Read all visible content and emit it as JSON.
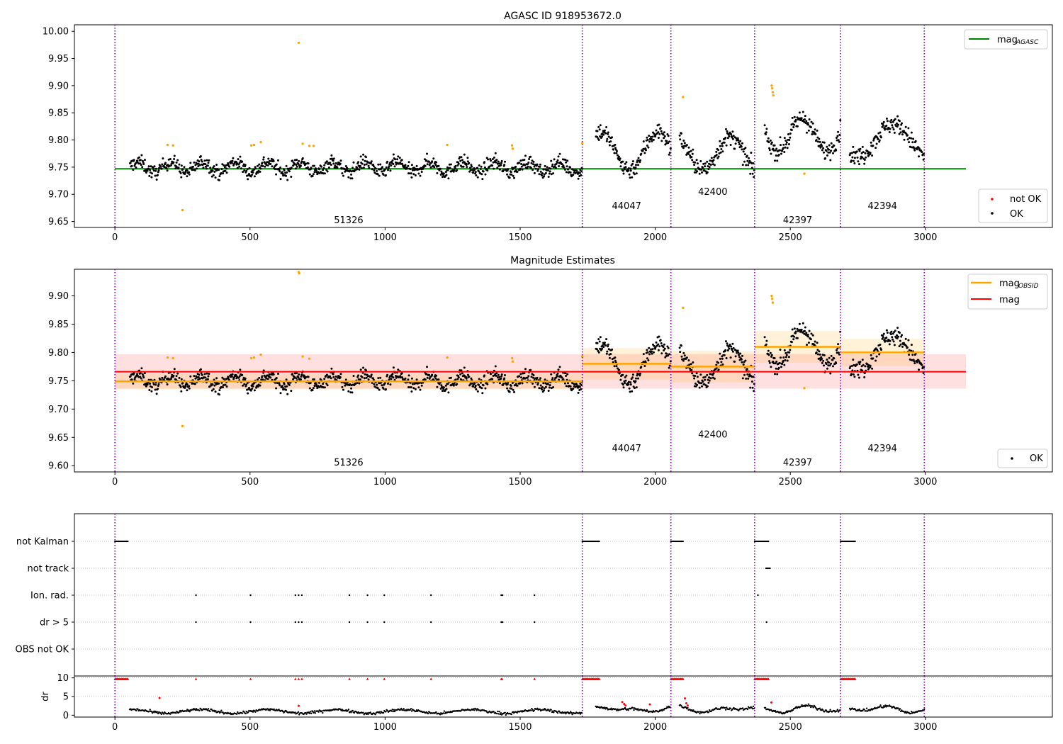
{
  "chart_data": [
    {
      "type": "scatter",
      "title": "AGASC ID 918953672.0",
      "xlim": [
        -150,
        3470
      ],
      "ylim": [
        9.639,
        10.012
      ],
      "xticks": [
        0,
        500,
        1000,
        1500,
        2000,
        2500,
        3000
      ],
      "xtick_labels": [
        "0",
        "500",
        "1000",
        "1500",
        "2000",
        "2500",
        "3000"
      ],
      "yticks": [
        9.65,
        9.7,
        9.75,
        9.8,
        9.85,
        9.9,
        9.95,
        10.0
      ],
      "ytick_labels": [
        "9.65",
        "9.70",
        "9.75",
        "9.80",
        "9.85",
        "9.90",
        "9.95",
        "10.00"
      ],
      "obs_boundaries": [
        0,
        1730,
        2058,
        2368,
        2686,
        2996
      ],
      "obsids": [
        {
          "label": "51326",
          "x": 865,
          "y": 9.652
        },
        {
          "label": "44047",
          "x": 1894,
          "y": 9.678
        },
        {
          "label": "42400",
          "x": 2213,
          "y": 9.704
        },
        {
          "label": "42397",
          "x": 2527,
          "y": 9.652
        },
        {
          "label": "42394",
          "x": 2841,
          "y": 9.678
        }
      ],
      "lines": [
        {
          "name": "mag_AGASC",
          "y": 9.747,
          "x": [
            0,
            3150
          ],
          "color": "#008000"
        }
      ],
      "not_ok_points": [
        {
          "x": 680,
          "y": 9.979
        },
        {
          "x": 250,
          "y": 9.671
        },
        {
          "x": 2103,
          "y": 9.879
        },
        {
          "x": 2431,
          "y": 9.9
        },
        {
          "x": 2433,
          "y": 9.895
        },
        {
          "x": 2435,
          "y": 9.888
        },
        {
          "x": 2437,
          "y": 9.882
        },
        {
          "x": 2552,
          "y": 9.738
        },
        {
          "x": 195,
          "y": 9.791
        },
        {
          "x": 215,
          "y": 9.79
        },
        {
          "x": 505,
          "y": 9.79
        },
        {
          "x": 515,
          "y": 9.791
        },
        {
          "x": 540,
          "y": 9.796
        },
        {
          "x": 695,
          "y": 9.793
        },
        {
          "x": 720,
          "y": 9.789
        },
        {
          "x": 735,
          "y": 9.789
        },
        {
          "x": 1230,
          "y": 9.791
        },
        {
          "x": 1470,
          "y": 9.79
        },
        {
          "x": 1472,
          "y": 9.784
        },
        {
          "x": 1730,
          "y": 9.794
        }
      ],
      "legends": [
        {
          "position": "upper right",
          "entries": [
            {
              "label": "mag",
              "sub": "AGASC",
              "color": "#008000",
              "kind": "line"
            }
          ]
        },
        {
          "position": "lower right",
          "entries": [
            {
              "label": "not OK",
              "color": "#ff0000",
              "kind": "dot"
            },
            {
              "label": "OK",
              "color": "#000000",
              "kind": "dot"
            }
          ]
        }
      ]
    },
    {
      "type": "scatter",
      "title": "Magnitude Estimates",
      "xlim": [
        -150,
        3470
      ],
      "ylim": [
        9.589,
        9.947
      ],
      "xticks": [
        0,
        500,
        1000,
        1500,
        2000,
        2500,
        3000
      ],
      "xtick_labels": [
        "0",
        "500",
        "1000",
        "1500",
        "2000",
        "2500",
        "3000"
      ],
      "yticks": [
        9.6,
        9.65,
        9.7,
        9.75,
        9.8,
        9.85,
        9.9
      ],
      "ytick_labels": [
        "9.60",
        "9.65",
        "9.70",
        "9.75",
        "9.80",
        "9.85",
        "9.90"
      ],
      "obs_boundaries": [
        0,
        1730,
        2058,
        2368,
        2686,
        2996
      ],
      "obsids": [
        {
          "label": "51326",
          "x": 865,
          "y": 9.605
        },
        {
          "label": "44047",
          "x": 1894,
          "y": 9.63
        },
        {
          "label": "42400",
          "x": 2213,
          "y": 9.655
        },
        {
          "label": "42397",
          "x": 2527,
          "y": 9.605
        },
        {
          "label": "42394",
          "x": 2841,
          "y": 9.63
        }
      ],
      "mag": {
        "y": 9.766,
        "band": [
          9.736,
          9.797
        ],
        "x": [
          0,
          3150
        ],
        "color": "#ff0000"
      },
      "mag_obsid": [
        {
          "x": [
            0,
            1730
          ],
          "y": 9.749,
          "band": [
            9.735,
            9.763
          ]
        },
        {
          "x": [
            1730,
            2058
          ],
          "y": 9.78,
          "band": [
            9.752,
            9.808
          ]
        },
        {
          "x": [
            2058,
            2368
          ],
          "y": 9.775,
          "band": [
            9.747,
            9.803
          ]
        },
        {
          "x": [
            2368,
            2686
          ],
          "y": 9.81,
          "band": [
            9.782,
            9.838
          ]
        },
        {
          "x": [
            2686,
            2996
          ],
          "y": 9.8,
          "band": [
            9.776,
            9.824
          ]
        }
      ],
      "not_ok_points": [
        {
          "x": 680,
          "y": 9.942
        },
        {
          "x": 682,
          "y": 9.94
        },
        {
          "x": 250,
          "y": 9.67
        },
        {
          "x": 2103,
          "y": 9.879
        },
        {
          "x": 2431,
          "y": 9.9
        },
        {
          "x": 2433,
          "y": 9.895
        },
        {
          "x": 2435,
          "y": 9.888
        },
        {
          "x": 2552,
          "y": 9.737
        },
        {
          "x": 195,
          "y": 9.791
        },
        {
          "x": 215,
          "y": 9.79
        },
        {
          "x": 505,
          "y": 9.79
        },
        {
          "x": 515,
          "y": 9.791
        },
        {
          "x": 540,
          "y": 9.796
        },
        {
          "x": 695,
          "y": 9.793
        },
        {
          "x": 720,
          "y": 9.789
        },
        {
          "x": 1230,
          "y": 9.791
        },
        {
          "x": 1470,
          "y": 9.79
        },
        {
          "x": 1472,
          "y": 9.784
        },
        {
          "x": 1730,
          "y": 9.793
        }
      ],
      "legends": [
        {
          "position": "upper right",
          "entries": [
            {
              "label": "mag",
              "sub": "OBSID",
              "color": "#ffa500",
              "kind": "line"
            },
            {
              "label": "mag",
              "sub": "",
              "color": "#ff0000",
              "kind": "line"
            }
          ]
        },
        {
          "position": "lower right",
          "entries": [
            {
              "label": "OK",
              "color": "#000000",
              "kind": "dot"
            }
          ]
        }
      ]
    },
    {
      "type": "scatter",
      "title": "",
      "xlim": [
        -150,
        3470
      ],
      "rows": [
        "not Kalman",
        "not track",
        "Ion. rad.",
        "dr > 5",
        "OBS not OK"
      ],
      "obs_boundaries": [
        0,
        1730,
        2058,
        2368,
        2686,
        2996
      ],
      "row_events": {
        "not Kalman": [
          [
            0,
            50
          ],
          [
            1730,
            1795
          ],
          [
            2058,
            2105
          ],
          [
            2368,
            2420
          ],
          [
            2686,
            2740
          ]
        ],
        "not track": [
          [
            2410,
            2425
          ]
        ],
        "Ion. rad.": [
          300,
          502,
          668,
          680,
          692,
          868,
          935,
          997,
          1170,
          1430,
          1435,
          1553,
          2380
        ],
        "dr > 5": [
          300,
          502,
          668,
          680,
          692,
          868,
          935,
          997,
          1170,
          1430,
          1435,
          1553,
          2412
        ],
        "OBS not OK": []
      }
    },
    {
      "type": "scatter",
      "ylabel": "dr",
      "xlim": [
        -150,
        3470
      ],
      "ylim": [
        -0.5,
        10.5
      ],
      "yticks": [
        0,
        5,
        10
      ],
      "ytick_labels": [
        "0",
        "5",
        "10"
      ],
      "xticks": [
        0,
        500,
        1000,
        1500,
        2000,
        2500,
        3000
      ],
      "xtick_labels": [
        "0",
        "500",
        "1000",
        "1500",
        "2000",
        "2500",
        "3000"
      ],
      "obs_boundaries": [
        0,
        1730,
        2058,
        2368,
        2686,
        2996
      ],
      "red_at_10": [
        [
          0,
          50
        ],
        [
          300,
          300
        ],
        [
          502,
          502
        ],
        [
          668,
          668
        ],
        [
          680,
          680
        ],
        [
          692,
          692
        ],
        [
          868,
          868
        ],
        [
          935,
          935
        ],
        [
          997,
          997
        ],
        [
          1170,
          1170
        ],
        [
          1430,
          1435
        ],
        [
          1553,
          1553
        ],
        [
          1730,
          1795
        ],
        [
          2058,
          2105
        ],
        [
          2368,
          2420
        ],
        [
          2686,
          2740
        ]
      ],
      "scattered_red": [
        {
          "x": 165,
          "y": 4.6
        },
        {
          "x": 680,
          "y": 2.5
        },
        {
          "x": 1878,
          "y": 3.5
        },
        {
          "x": 1885,
          "y": 3.0
        },
        {
          "x": 1890,
          "y": 2.6
        },
        {
          "x": 1980,
          "y": 2.9
        },
        {
          "x": 2110,
          "y": 4.5
        },
        {
          "x": 2115,
          "y": 3.2
        },
        {
          "x": 2120,
          "y": 2.6
        },
        {
          "x": 2430,
          "y": 3.4
        }
      ]
    }
  ]
}
